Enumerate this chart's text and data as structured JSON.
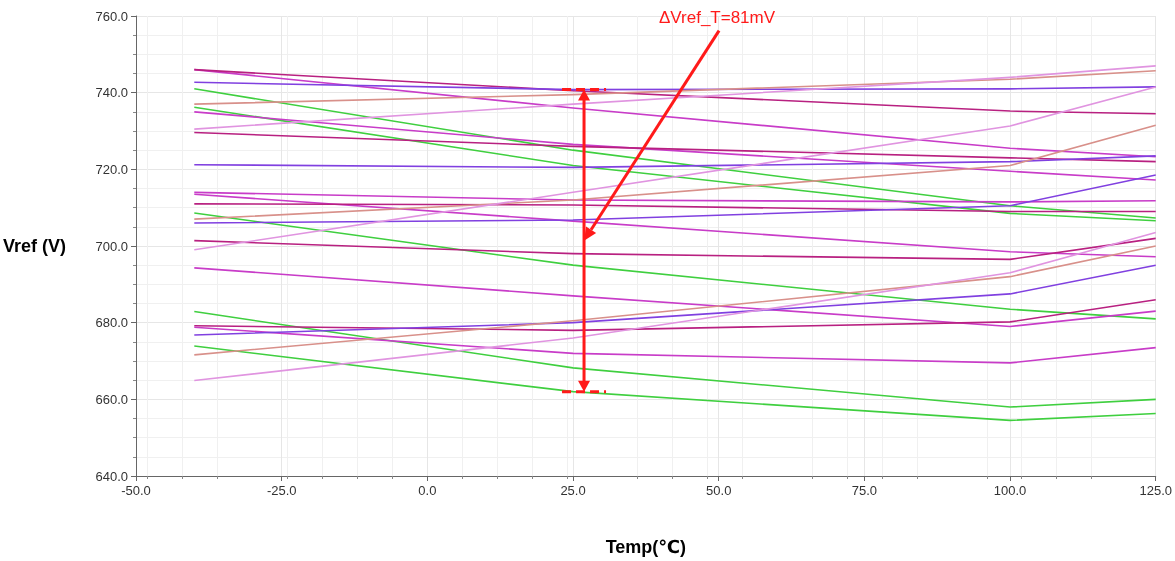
{
  "chart_data": {
    "type": "line",
    "xlabel": "Temp(℃)",
    "ylabel": "Vref (V)",
    "x": [
      -40,
      25,
      100,
      125
    ],
    "xlim": [
      -50,
      125
    ],
    "xticks": [
      {
        "value": -50,
        "label": "-50.0"
      },
      {
        "value": -25,
        "label": "-25.0"
      },
      {
        "value": 0,
        "label": "0.0"
      },
      {
        "value": 25,
        "label": "25.0"
      },
      {
        "value": 50,
        "label": "50.0"
      },
      {
        "value": 75,
        "label": "75.0"
      },
      {
        "value": 100,
        "label": "100.0"
      },
      {
        "value": 125,
        "label": "125.0"
      }
    ],
    "ylim": [
      640,
      760
    ],
    "yticks": [
      {
        "value": 640,
        "label": "640.0"
      },
      {
        "value": 660,
        "label": "660.0"
      },
      {
        "value": 680,
        "label": "680.0"
      },
      {
        "value": 700,
        "label": "700.0"
      },
      {
        "value": 720,
        "label": "720.0"
      },
      {
        "value": 740,
        "label": "740.0"
      },
      {
        "value": 760,
        "label": "760.0"
      }
    ],
    "grid": true,
    "marker": "none",
    "line_style": "solid",
    "annotations": [
      "ΔVref_T=81mV"
    ],
    "series": [
      {
        "color": "#c83cc8",
        "values": [
          746,
          736,
          725.5,
          723.3
        ]
      },
      {
        "color": "#b82080",
        "values": [
          746,
          740.5,
          735.2,
          734.5
        ]
      },
      {
        "color": "#8040e0",
        "values": [
          742.7,
          740.8,
          741,
          741.5
        ]
      },
      {
        "color": "#3fcf3f",
        "values": [
          741,
          725,
          710.5,
          707.3
        ]
      },
      {
        "color": "#d8908a",
        "values": [
          737,
          739.5,
          743.5,
          745.7
        ]
      },
      {
        "color": "#3fcf3f",
        "values": [
          736.2,
          721,
          708.5,
          706.6
        ]
      },
      {
        "color": "#c83cc8",
        "values": [
          735,
          726.5,
          719.5,
          717.2
        ]
      },
      {
        "color": "#e094e0",
        "values": [
          730.5,
          737,
          744,
          747
        ]
      },
      {
        "color": "#b82080",
        "values": [
          729.6,
          726,
          723,
          722
        ]
      },
      {
        "color": "#8040e0",
        "values": [
          721.2,
          720.5,
          722,
          723.5
        ]
      },
      {
        "color": "#c83cc8",
        "values": [
          714,
          712,
          711.5,
          711.8
        ]
      },
      {
        "color": "#c83cc8",
        "values": [
          713.5,
          706.5,
          698.5,
          697.2
        ]
      },
      {
        "color": "#b82080",
        "values": [
          711,
          710.7,
          709,
          709
        ]
      },
      {
        "color": "#3fcf3f",
        "values": [
          708.6,
          695,
          683.5,
          681
        ]
      },
      {
        "color": "#d8908a",
        "values": [
          707,
          712,
          721,
          731.5
        ]
      },
      {
        "color": "#8040e0",
        "values": [
          706,
          706.8,
          710.5,
          718.5
        ]
      },
      {
        "color": "#b82080",
        "values": [
          701.4,
          698,
          696.5,
          702
        ]
      },
      {
        "color": "#e094e0",
        "values": [
          699,
          714,
          731.3,
          741.5
        ]
      },
      {
        "color": "#c83cc8",
        "values": [
          694.3,
          687,
          679,
          683
        ]
      },
      {
        "color": "#3fcf3f",
        "values": [
          682.9,
          668.2,
          658,
          660
        ]
      },
      {
        "color": "#3fcf3f",
        "values": [
          673.9,
          662,
          654.5,
          656.3
        ]
      },
      {
        "color": "#b82080",
        "values": [
          679.2,
          678,
          680.2,
          686
        ]
      },
      {
        "color": "#c83cc8",
        "values": [
          678.8,
          672,
          669.5,
          673.5
        ]
      },
      {
        "color": "#8040e0",
        "values": [
          676.8,
          680,
          687.5,
          695
        ]
      },
      {
        "color": "#d8908a",
        "values": [
          671.6,
          680.5,
          692,
          700
        ]
      },
      {
        "color": "#e094e0",
        "values": [
          664.9,
          676,
          693,
          703.5
        ]
      }
    ]
  }
}
